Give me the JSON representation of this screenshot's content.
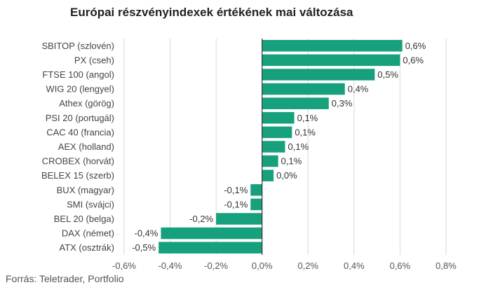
{
  "chart_data": {
    "type": "bar",
    "orientation": "horizontal",
    "title": "Európai részvényindexek értékének mai változása",
    "categories": [
      "SBITOP (szlovén)",
      "PX (cseh)",
      "FTSE 100 (angol)",
      "WIG 20 (lengyel)",
      "Athex (görög)",
      "PSI 20 (portugál)",
      "CAC 40 (francia)",
      "AEX (holland)",
      "CROBEX (horvát)",
      "BELEX 15 (szerb)",
      "BUX (magyar)",
      "SMI (svájci)",
      "BEL 20 (belga)",
      "DAX (német)",
      "ATX (osztrák)"
    ],
    "values": [
      0.61,
      0.6,
      0.49,
      0.36,
      0.29,
      0.14,
      0.13,
      0.1,
      0.07,
      0.05,
      -0.05,
      -0.05,
      -0.2,
      -0.44,
      -0.45
    ],
    "value_labels": [
      "0,6%",
      "0,6%",
      "0,5%",
      "0,4%",
      "0,3%",
      "0,1%",
      "0,1%",
      "0,1%",
      "0,1%",
      "0,0%",
      "-0,1%",
      "-0,1%",
      "-0,2%",
      "-0,4%",
      "-0,5%"
    ],
    "xlim": [
      -0.6,
      0.8
    ],
    "xticks": [
      -0.6,
      -0.4,
      -0.2,
      0.0,
      0.2,
      0.4,
      0.6,
      0.8
    ],
    "xtick_labels": [
      "-0,6%",
      "-0,4%",
      "-0,2%",
      "0,0%",
      "0,2%",
      "0,4%",
      "0,6%",
      "0,8%"
    ],
    "grid": "vertical",
    "legend": "none",
    "bar_color": "#16a07c",
    "grid_color": "#d9d9d9",
    "axis_color": "#333333"
  },
  "footer": {
    "source": "Forrás: Teletrader, Portfolio"
  }
}
